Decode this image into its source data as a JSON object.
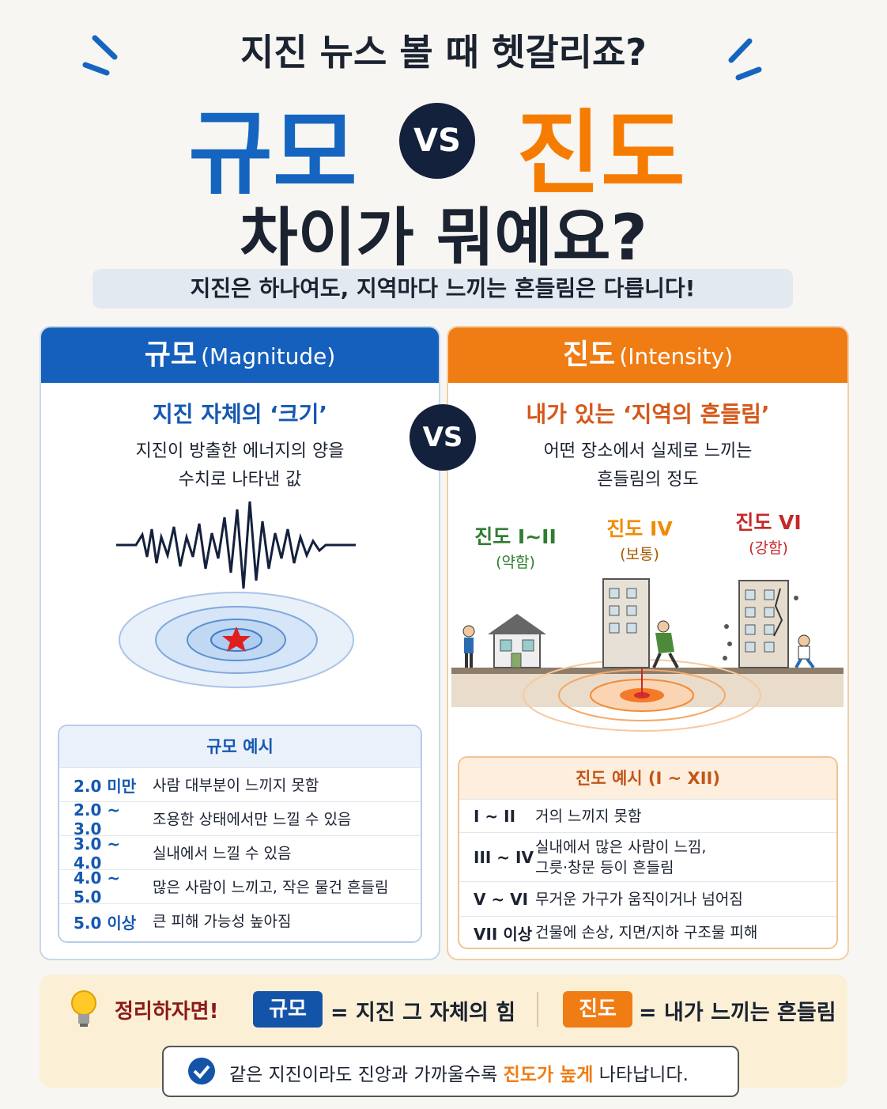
{
  "header": {
    "kicker": "지진 뉴스 볼 때 헷갈리죠?",
    "left": "규모",
    "vs": "VS",
    "right": "진도",
    "question": "차이가 뭐예요?",
    "subtitle": "지진은 하나여도, 지역마다 느끼는 흔들림은 다릅니다!"
  },
  "center_vs": "VS",
  "magnitude": {
    "title": "규모",
    "title_en": "(Magnitude)",
    "heading": "지진 자체의 ‘크기’",
    "description": [
      "지진이 방출한 에너지의 양을",
      "수치로 나타낸 값"
    ],
    "table": {
      "title": "규모 예시",
      "rows": [
        [
          "2.0 미만",
          "사람 대부분이 느끼지 못함"
        ],
        [
          "2.0 ~ 3.0",
          "조용한 상태에서만 느낄 수 있음"
        ],
        [
          "3.0 ~ 4.0",
          "실내에서 느낄 수 있음"
        ],
        [
          "4.0 ~ 5.0",
          "많은 사람이 느끼고, 작은 물건 흔들림"
        ],
        [
          "5.0 이상",
          "큰 피해 가능성 높아짐"
        ]
      ]
    }
  },
  "intensity": {
    "title": "진도",
    "title_en": "(Intensity)",
    "heading": "내가 있는 ‘지역의 흔들림’",
    "description": [
      "어떤 장소에서 실제로 느끼는",
      "흔들림의 정도"
    ],
    "levels": [
      {
        "label": "진도 I~II",
        "strength": "(약함)"
      },
      {
        "label": "진도 IV",
        "strength": "(보통)"
      },
      {
        "label": "진도 VI",
        "strength": "(강함)"
      }
    ],
    "table": {
      "title": "진도 예시 (I ~ XII)",
      "rows": [
        [
          "I ~ II",
          "거의 느끼지 못함"
        ],
        [
          "III ~ IV",
          "실내에서 많은 사람이 느낌,\n그릇·창문 등이 흔들림"
        ],
        [
          "V ~ VI",
          "무거운 가구가 움직이거나 넘어짐"
        ],
        [
          "VII 이상",
          "건물에 손상, 지면/지하 구조물 피해"
        ]
      ]
    }
  },
  "summary": {
    "label": "정리하자면!",
    "items": [
      {
        "tag": "규모",
        "text": "= 지진 그 자체의 힘"
      },
      {
        "tag": "진도",
        "text": "= 내가 느끼는 흔들림"
      }
    ],
    "note": {
      "before": "같은 지진이라도 진앙과 가까울수록 ",
      "highlight": "진도가 높게",
      "after": " 나타납니다."
    }
  }
}
